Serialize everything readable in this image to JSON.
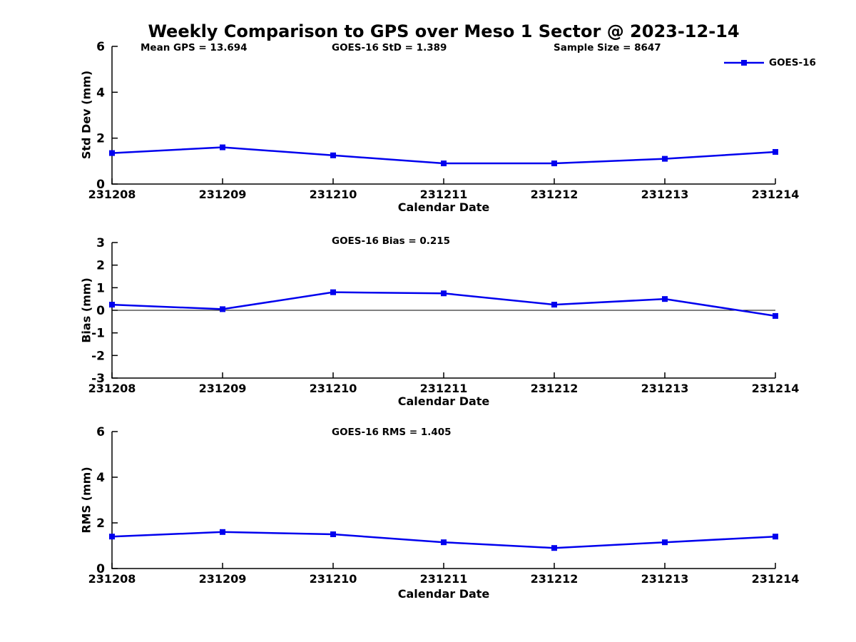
{
  "title": "Weekly Comparison to GPS over Meso 1 Sector @ 2023-12-14",
  "legend": {
    "label": "GOES-16",
    "color": "#0000EE",
    "position": "top-right"
  },
  "chart_data": [
    {
      "type": "line",
      "title": "",
      "annotations": [
        "Mean GPS = 13.694",
        "GOES-16 StD = 1.389",
        "Sample Size = 8647"
      ],
      "xlabel": "Calendar Date",
      "ylabel": "Std Dev (mm)",
      "categories": [
        "231208",
        "231209",
        "231210",
        "231211",
        "231212",
        "231213",
        "231214"
      ],
      "series": [
        {
          "name": "GOES-16",
          "color": "#0000EE",
          "marker": "square",
          "values": [
            1.35,
            1.6,
            1.25,
            0.9,
            0.9,
            1.1,
            1.4
          ]
        }
      ],
      "ylim": [
        0,
        6
      ],
      "yticks": [
        0,
        2,
        4,
        6
      ],
      "zero_line": false,
      "grid": false
    },
    {
      "type": "line",
      "title": "GOES-16 Bias  = 0.215",
      "xlabel": "Calendar Date",
      "ylabel": "Bias (mm)",
      "categories": [
        "231208",
        "231209",
        "231210",
        "231211",
        "231212",
        "231213",
        "231214"
      ],
      "series": [
        {
          "name": "GOES-16",
          "color": "#0000EE",
          "marker": "square",
          "values": [
            0.25,
            0.05,
            0.8,
            0.75,
            0.25,
            0.5,
            -0.25
          ]
        }
      ],
      "ylim": [
        -3,
        3
      ],
      "yticks": [
        -3,
        -2,
        -1,
        0,
        1,
        2,
        3
      ],
      "zero_line": true,
      "grid": false
    },
    {
      "type": "line",
      "title": "GOES-16 RMS = 1.405",
      "xlabel": "Calendar Date",
      "ylabel": "RMS (mm)",
      "categories": [
        "231208",
        "231209",
        "231210",
        "231211",
        "231212",
        "231213",
        "231214"
      ],
      "series": [
        {
          "name": "GOES-16",
          "color": "#0000EE",
          "marker": "square",
          "values": [
            1.4,
            1.6,
            1.5,
            1.15,
            0.9,
            1.15,
            1.4
          ]
        }
      ],
      "ylim": [
        0,
        6
      ],
      "yticks": [
        0,
        2,
        4,
        6
      ],
      "zero_line": false,
      "grid": false
    }
  ]
}
